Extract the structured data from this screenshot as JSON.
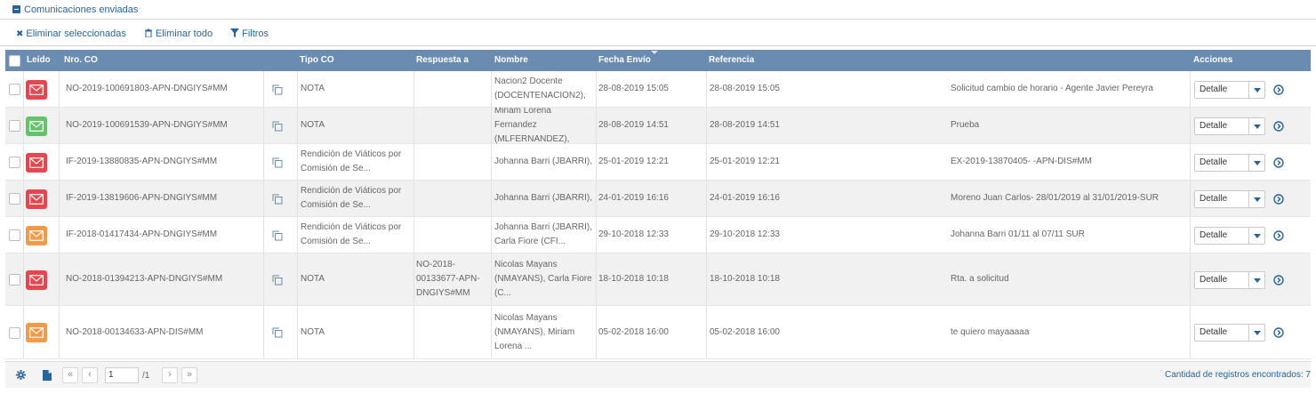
{
  "section": {
    "title": "Comunicaciones enviadas",
    "icon": "collapse-minus-icon"
  },
  "toolbar": {
    "delete_selected": "Eliminar seleccionadas",
    "delete_all": "Eliminar todo",
    "filters": "Filtros"
  },
  "table": {
    "headers": {
      "leido": "Leído",
      "nro_co": "Nro. CO",
      "tipo_co": "Tipo CO",
      "respuesta_a": "Respuesta a",
      "nombre": "Nombre",
      "fecha_envio": "Fecha Envío",
      "referencia": "Referencia",
      "acciones": "Acciones"
    },
    "rows": [
      {
        "envelope": "red",
        "nro": "NO-2019-100691803-APN-DNGIYS#MM",
        "tipo": "NOTA",
        "respuesta": "",
        "nombre": "Nacion2 Docente (DOCENTENACION2),",
        "fecha": "28-08-2019 15:05",
        "fecha2": "28-08-2019 15:05",
        "referencia": "Solicitud cambio de horario - Agente Javier Pereyra",
        "accion": "Detalle"
      },
      {
        "envelope": "green",
        "nro": "NO-2019-100691539-APN-DNGIYS#MM",
        "tipo": "NOTA",
        "respuesta": "",
        "nombre": "Miriam Lorena Fernandez (MLFERNANDEZ),",
        "fecha": "28-08-2019 14:51",
        "fecha2": "28-08-2019 14:51",
        "referencia": "Prueba",
        "accion": "Detalle"
      },
      {
        "envelope": "red",
        "nro": "IF-2019-13880835-APN-DNGIYS#MM",
        "tipo": "Rendición de Viáticos por Comisión de Se...",
        "respuesta": "",
        "nombre": "Johanna Barri (JBARRI),",
        "fecha": "25-01-2019 12:21",
        "fecha2": "25-01-2019 12:21",
        "referencia": "EX-2019-13870405- -APN-DIS#MM",
        "accion": "Detalle"
      },
      {
        "envelope": "red",
        "nro": "IF-2019-13819606-APN-DNGIYS#MM",
        "tipo": "Rendición de Viáticos por Comisión de Se...",
        "respuesta": "",
        "nombre": "Johanna Barri (JBARRI),",
        "fecha": "24-01-2019 16:16",
        "fecha2": "24-01-2019 16:16",
        "referencia": "Moreno Juan Carlos- 28/01/2019 al 31/01/2019-SUR",
        "accion": "Detalle"
      },
      {
        "envelope": "orange",
        "nro": "IF-2018-01417434-APN-DNGIYS#MM",
        "tipo": "Rendición de Viáticos por Comisión de Se...",
        "respuesta": "",
        "nombre": "Johanna Barri (JBARRI), Carla Fiore (CFI...",
        "fecha": "29-10-2018 12:33",
        "fecha2": "29-10-2018 12:33",
        "referencia": "Johanna Barri 01/11 al 07/11 SUR",
        "accion": "Detalle"
      },
      {
        "envelope": "red",
        "nro": "NO-2018-01394213-APN-DNGIYS#MM",
        "tipo": "NOTA",
        "respuesta": "NO-2018-00133677-APN-DNGIYS#MM",
        "nombre": "Nicolas Mayans (NMAYANS), Carla Fiore (C...",
        "fecha": "18-10-2018 10:18",
        "fecha2": "18-10-2018 10:18",
        "referencia": "Rta. a solicitud",
        "accion": "Detalle"
      },
      {
        "envelope": "orange",
        "nro": "NO-2018-00134633-APN-DIS#MM",
        "tipo": "NOTA",
        "respuesta": "",
        "nombre": "Nicolas Mayans (NMAYANS), Miriam Lorena ...",
        "fecha": "05-02-2018 16:00",
        "fecha2": "05-02-2018 16:00",
        "referencia": "te quiero mayaaaaa",
        "accion": "Detalle"
      }
    ]
  },
  "colors": {
    "red": "#e8464f",
    "green": "#63c36a",
    "orange": "#f29a47",
    "header": "#6a8cb0",
    "link": "#2a6496"
  },
  "footer": {
    "page": "1",
    "total_pages": "/1",
    "count": "Cantidad de registros encontrados: 7"
  }
}
